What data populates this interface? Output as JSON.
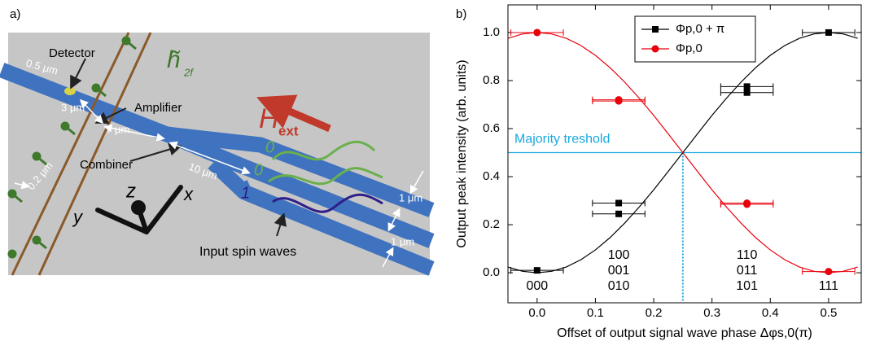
{
  "diagram": {
    "panel_label": "a)",
    "detector": "Detector",
    "amplifier": "Amplifier",
    "combiner": "Combiner",
    "input": "Input spin waves",
    "dims": [
      "0.5 μm",
      "3 μm",
      "7 μm",
      "10 μm",
      "0.2 μm",
      "1 μm",
      "1 μm"
    ],
    "h_field": {
      "main": "h̃",
      "sub": "2f"
    },
    "H_ext": {
      "main": "H",
      "sub": "ext"
    },
    "axes": [
      "z",
      "x",
      "y"
    ],
    "bits": [
      "0",
      "0",
      "1"
    ]
  },
  "chart_data": {
    "type": "scatter",
    "panel_label": "b)",
    "x_label": "Offset of output signal wave phase  Δφs,0(π)",
    "y_label": "Output peak intensity (arb. units)",
    "xlim": [
      -0.05,
      0.556
    ],
    "ylim": [
      -0.125,
      1.115
    ],
    "xticks": [
      {
        "value": 0,
        "label": "0.0"
      },
      0.1,
      0.2,
      0.3,
      0.4,
      0.5
    ],
    "yticks": [
      {
        "value": 0,
        "label": "0.0"
      },
      0.2,
      0.4,
      0.6,
      0.8,
      {
        "value": 1,
        "label": "1.0"
      }
    ],
    "series": [
      {
        "name": "Φp,0 + π",
        "color": "#000000",
        "marker": "square",
        "x": [
          0,
          0.14,
          0.14,
          0.36,
          0.36,
          0.5
        ],
        "values": [
          0.01,
          0.29,
          0.245,
          0.775,
          0.75,
          1.0
        ],
        "xerr": [
          0.045,
          0.045,
          0.045,
          0.045,
          0.045,
          0.045
        ],
        "fit": [
          0.024,
          0.006,
          0,
          0.006,
          0.024,
          0.054,
          0.095,
          0.146,
          0.206,
          0.273,
          0.345,
          0.422,
          0.5,
          0.578,
          0.655,
          0.727,
          0.794,
          0.854,
          0.905,
          0.946,
          0.976,
          0.994,
          1,
          0.994,
          0.976
        ]
      },
      {
        "name": "Φp,0",
        "color": "#e8000b",
        "marker": "circle",
        "x": [
          0,
          0.14,
          0.14,
          0.36,
          0.36,
          0.5
        ],
        "values": [
          1.0,
          0.72,
          0.715,
          0.29,
          0.285,
          0.005
        ],
        "xerr": [
          0.045,
          0.045,
          0.045,
          0.045,
          0.045,
          0.045
        ],
        "fit": [
          0.976,
          0.994,
          1,
          0.994,
          0.976,
          0.946,
          0.905,
          0.854,
          0.794,
          0.727,
          0.655,
          0.578,
          0.5,
          0.422,
          0.345,
          0.273,
          0.206,
          0.146,
          0.095,
          0.054,
          0.024,
          0.006,
          0,
          0.006,
          0.024
        ]
      }
    ],
    "fit_x": [
      -0.05,
      -0.025,
      0,
      0.025,
      0.05,
      0.075,
      0.1,
      0.125,
      0.15,
      0.175,
      0.2,
      0.225,
      0.25,
      0.275,
      0.3,
      0.325,
      0.35,
      0.375,
      0.4,
      0.425,
      0.45,
      0.475,
      0.5,
      0.525,
      0.55
    ],
    "threshold": {
      "label": "Majority treshold",
      "value": 0.5,
      "color": "#1aa7e0"
    },
    "divider_x": 0.25,
    "groups": [
      [
        "000"
      ],
      [
        "100",
        "001",
        "010"
      ],
      [
        "110",
        "011",
        "101"
      ],
      [
        "111"
      ]
    ]
  }
}
